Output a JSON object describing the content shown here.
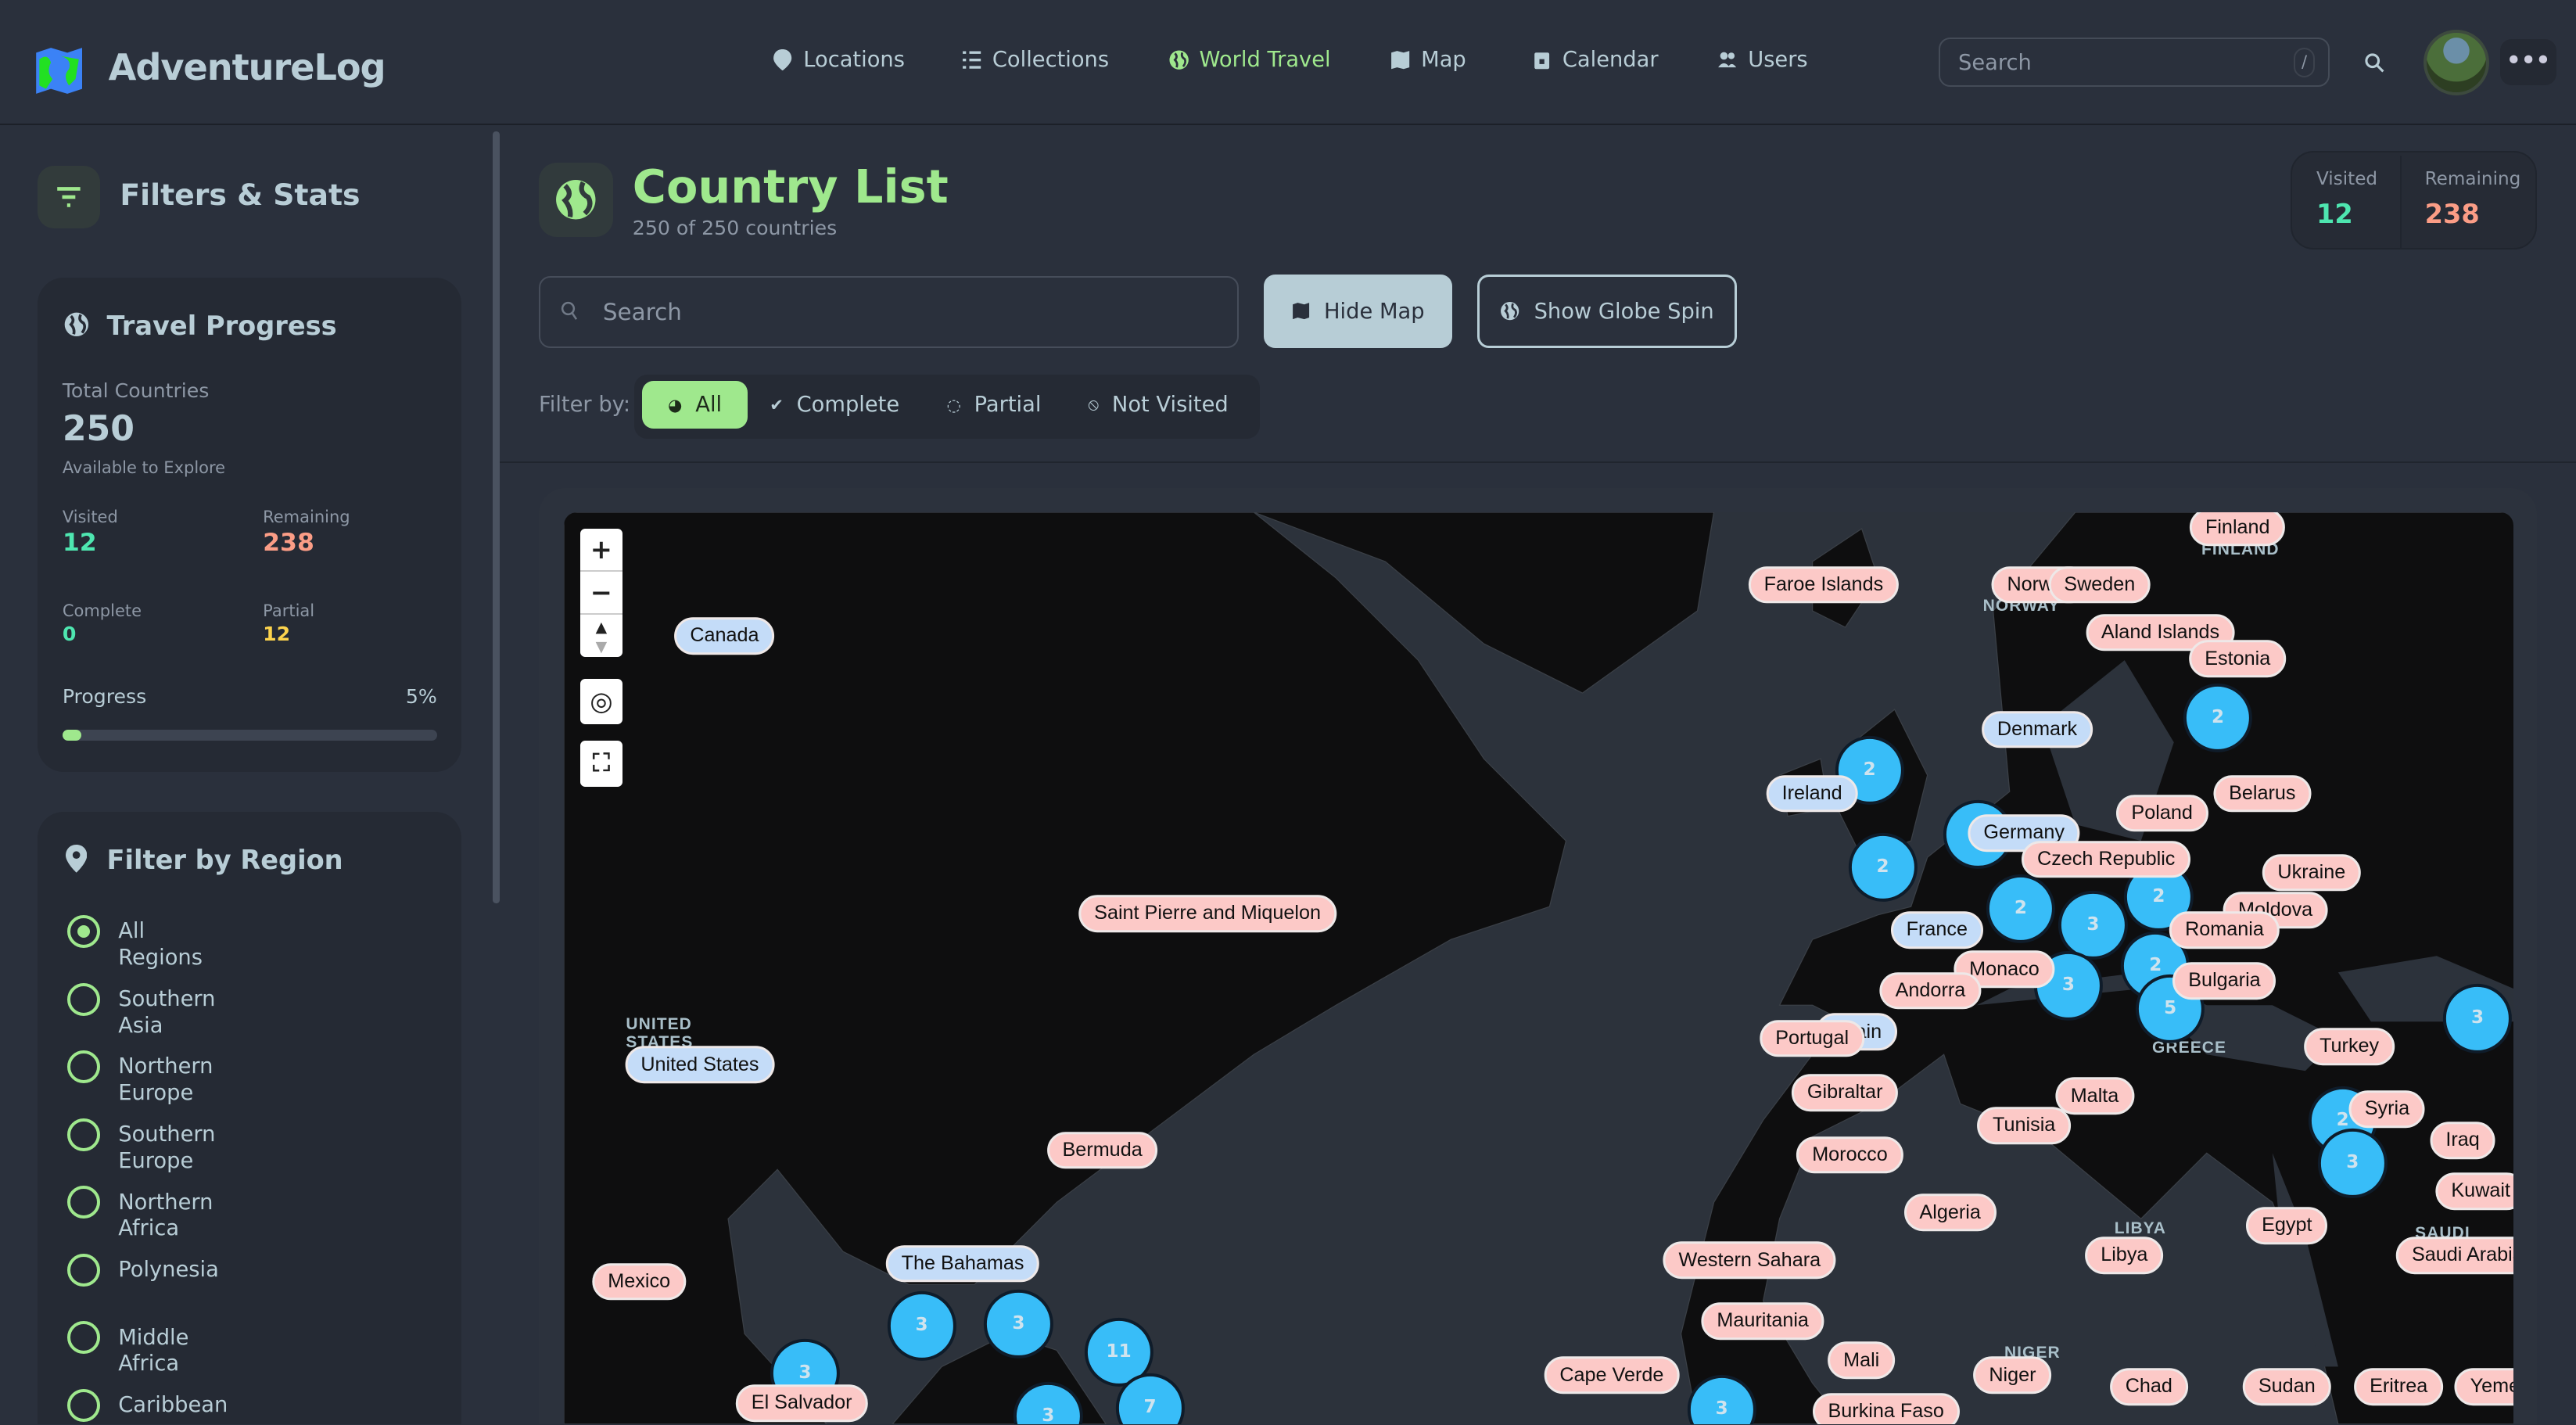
{
  "app": {
    "name": "AdventureLog"
  },
  "nav": [
    {
      "label": "Locations",
      "icon": "map-pin-icon"
    },
    {
      "label": "Collections",
      "icon": "list-icon"
    },
    {
      "label": "World Travel",
      "icon": "globe-icon",
      "active": true
    },
    {
      "label": "Map",
      "icon": "map-icon"
    },
    {
      "label": "Calendar",
      "icon": "calendar-icon"
    },
    {
      "label": "Users",
      "icon": "users-icon"
    }
  ],
  "header": {
    "search_placeholder": "Search",
    "search_shortcut": "/"
  },
  "sidebar": {
    "title": "Filters & Stats",
    "progress": {
      "title": "Travel Progress",
      "total_label": "Total Countries",
      "total": "250",
      "total_sub": "Available to Explore",
      "visited_label": "Visited",
      "visited": "12",
      "remaining_label": "Remaining",
      "remaining": "238",
      "complete_label": "Complete",
      "complete": "0",
      "partial_label": "Partial",
      "partial": "12",
      "progress_label": "Progress",
      "progress_pct": "5%",
      "progress_value": 5
    },
    "region": {
      "title": "Filter by Region",
      "selected": "All Regions",
      "options": [
        "All Regions",
        "Southern Asia",
        "Northern Europe",
        "Southern Europe",
        "Northern Africa",
        "Polynesia",
        "Middle Africa",
        "Caribbean"
      ]
    }
  },
  "main": {
    "title": "Country List",
    "subtitle": "250 of 250 countries",
    "stats": {
      "visited_label": "Visited",
      "visited": "12",
      "remaining_label": "Remaining",
      "remaining": "238"
    },
    "search_placeholder": "Search",
    "hide_map": "Hide Map",
    "show_globe": "Show Globe Spin",
    "filter_label": "Filter by:",
    "filters": [
      "All",
      "Complete",
      "Partial",
      "Not Visited"
    ],
    "active_filter": "All"
  },
  "colors": {
    "accent": "#9fe88d",
    "visited_marker": "#c4dcf8",
    "not_visited_marker": "#fcc9c7",
    "cluster": "#38bdf8",
    "visited_stat": "#4ee6b0",
    "remaining_stat": "#fb9d86",
    "partial_stat": "#fcd34d"
  },
  "map": {
    "controls": [
      "+",
      "−"
    ],
    "labels": [
      "UNITED STATES",
      "NORWAY",
      "FINLAND",
      "GREECE",
      "LIBYA",
      "NIGER",
      "SAUDI"
    ],
    "visited_markers": [
      "Canada",
      "United States",
      "The Bahamas",
      "Ireland",
      "Denmark",
      "Germany",
      "France",
      "Spain"
    ],
    "not_visited_markers": [
      "Faroe Islands",
      "Norway",
      "Sweden",
      "Finland",
      "Aland Islands",
      "Estonia",
      "Belarus",
      "Poland",
      "Czech Republic",
      "Ukraine",
      "Moldova",
      "Romania",
      "Bulgaria",
      "Monaco",
      "Andorra",
      "Portugal",
      "Turkey",
      "Gibraltar",
      "Malta",
      "Tunisia",
      "Syria",
      "Iraq",
      "Morocco",
      "Kuwait",
      "Algeria",
      "Egypt",
      "Libya",
      "Western Sahara",
      "Saudi Arabia",
      "Mauritania",
      "Mali",
      "Niger",
      "Chad",
      "Sudan",
      "Eritrea",
      "Yemen",
      "Burkina Faso",
      "Cape Verde",
      "Saint Pierre and Miquelon",
      "Bermuda",
      "Mexico",
      "El Salvador"
    ],
    "clusters": [
      "2",
      "2",
      "",
      "2",
      "3",
      "2",
      "2",
      "3",
      "5",
      "2",
      "3",
      "2",
      "3",
      "3",
      "3",
      "11",
      "3",
      "7",
      "3",
      "3"
    ]
  }
}
